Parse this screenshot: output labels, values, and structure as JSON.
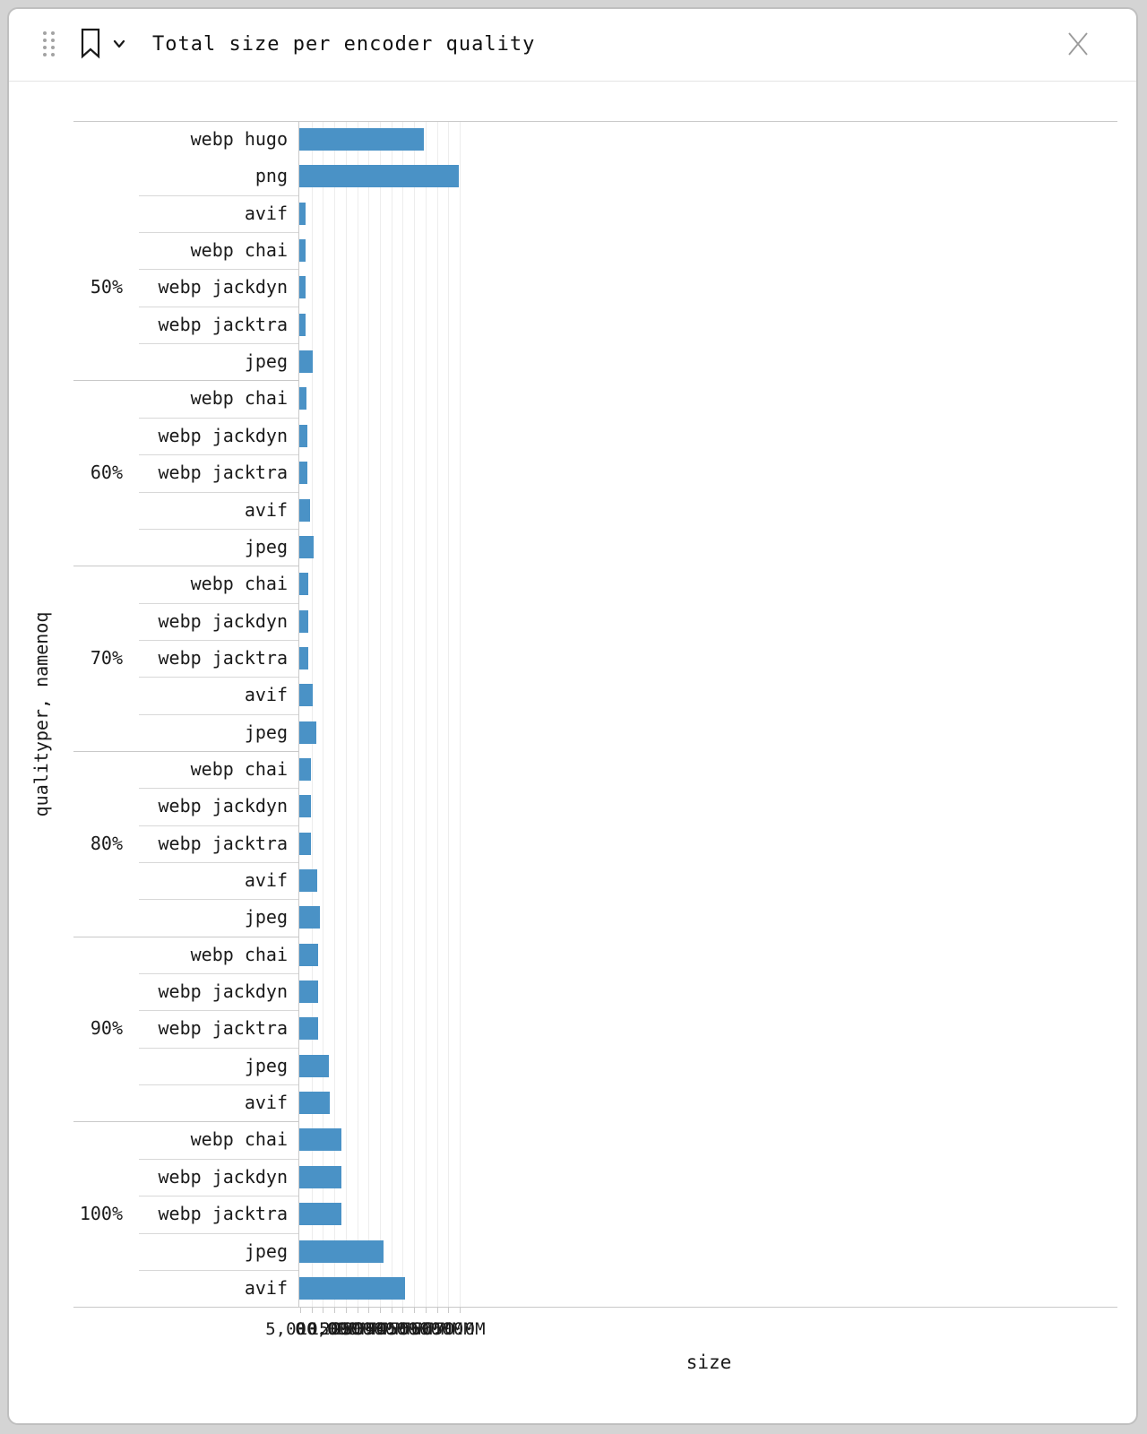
{
  "header": {
    "title": "Total size per encoder quality",
    "icons": {
      "drag_handle": "drag-handle",
      "bookmark": "bookmark",
      "chevron": "chevron-down",
      "close": "close"
    }
  },
  "colors": {
    "bar": "#4a92c6",
    "grid": "#ededed",
    "divider_inner": "#d8d8d8",
    "divider_group": "#c9c9c9",
    "text": "#1a1a1a",
    "close_icon": "#999999"
  },
  "chart_data": {
    "type": "bar",
    "orientation": "horizontal",
    "title": "Total size per encoder quality",
    "xlabel": "size",
    "ylabel": "qualityper, namenoq",
    "xlim": [
      0,
      71750000
    ],
    "grid": true,
    "legend": false,
    "xticks": [
      {
        "value": 0,
        "label": "0"
      },
      {
        "value": 5000000,
        "label": "5,000,000"
      },
      {
        "value": 10000000,
        "label": "10.0M"
      },
      {
        "value": 15000000,
        "label": "15.0M"
      },
      {
        "value": 20000000,
        "label": "20.0M"
      },
      {
        "value": 25000000,
        "label": "25.0M"
      },
      {
        "value": 30000000,
        "label": "30.0M"
      },
      {
        "value": 35000000,
        "label": "35.0M"
      },
      {
        "value": 40000000,
        "label": "40.0M"
      },
      {
        "value": 45000000,
        "label": "45.0M"
      },
      {
        "value": 50000000,
        "label": "50.0M"
      },
      {
        "value": 55000000,
        "label": "55.0M"
      },
      {
        "value": 60000000,
        "label": "60.0M"
      },
      {
        "value": 65000000,
        "label": "65.0M"
      },
      {
        "value": 70000000,
        "label": "70.0M"
      }
    ],
    "groups": [
      {
        "quality": "50%",
        "label_row": 4,
        "rows": [
          {
            "name": "webp hugo",
            "size": 54790000,
            "divider_after": false
          },
          {
            "name": "png",
            "size": 69930000
          },
          {
            "name": "avif",
            "size": 2880000
          },
          {
            "name": "webp chai",
            "size": 2880000
          },
          {
            "name": "webp jackdyn",
            "size": 2900000
          },
          {
            "name": "webp jacktra",
            "size": 2900000
          },
          {
            "name": "jpeg",
            "size": 5760000
          }
        ]
      },
      {
        "quality": "60%",
        "label_row": 2,
        "rows": [
          {
            "name": "webp chai",
            "size": 3320000
          },
          {
            "name": "webp jackdyn",
            "size": 3350000
          },
          {
            "name": "webp jacktra",
            "size": 3350000
          },
          {
            "name": "avif",
            "size": 4530000
          },
          {
            "name": "jpeg",
            "size": 6440000
          }
        ]
      },
      {
        "quality": "70%",
        "label_row": 2,
        "rows": [
          {
            "name": "webp chai",
            "size": 3770000
          },
          {
            "name": "webp jackdyn",
            "size": 3770000
          },
          {
            "name": "webp jacktra",
            "size": 3820000
          },
          {
            "name": "avif",
            "size": 6020000
          },
          {
            "name": "jpeg",
            "size": 7380000
          }
        ]
      },
      {
        "quality": "80%",
        "label_row": 2,
        "rows": [
          {
            "name": "webp chai",
            "size": 4970000
          },
          {
            "name": "webp jackdyn",
            "size": 4970000
          },
          {
            "name": "webp jacktra",
            "size": 5020000
          },
          {
            "name": "avif",
            "size": 8010000
          },
          {
            "name": "jpeg",
            "size": 9090000
          }
        ]
      },
      {
        "quality": "90%",
        "label_row": 2,
        "rows": [
          {
            "name": "webp chai",
            "size": 8400000
          },
          {
            "name": "webp jackdyn",
            "size": 8400000
          },
          {
            "name": "webp jacktra",
            "size": 8400000
          },
          {
            "name": "jpeg",
            "size": 13070000
          },
          {
            "name": "avif",
            "size": 13510000
          }
        ]
      },
      {
        "quality": "100%",
        "label_row": 2,
        "rows": [
          {
            "name": "webp chai",
            "size": 18310000
          },
          {
            "name": "webp jackdyn",
            "size": 18310000
          },
          {
            "name": "webp jacktra",
            "size": 18310000
          },
          {
            "name": "jpeg",
            "size": 36890000
          },
          {
            "name": "avif",
            "size": 46560000
          }
        ]
      }
    ]
  }
}
